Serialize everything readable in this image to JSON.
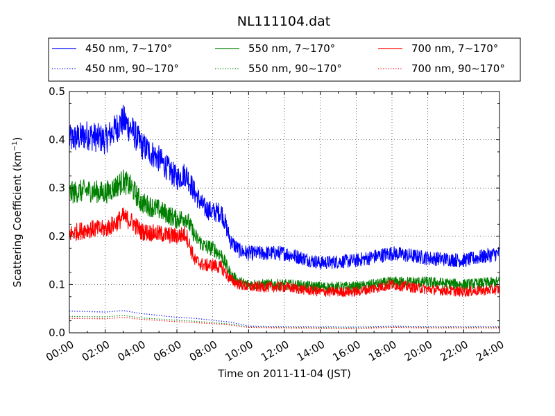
{
  "chart_data": {
    "type": "line",
    "title": "NL111104.dat",
    "xlabel": "Time on 2011-11-04 (JST)",
    "ylabel": "Scattering Coefficient (km",
    "ylabel_sup": "−1",
    "ylabel_tail": ")",
    "xlim": [
      "00:00",
      "24:00"
    ],
    "ylim": [
      0,
      0.5
    ],
    "x_ticks": [
      "00:00",
      "02:00",
      "04:00",
      "06:00",
      "08:00",
      "10:00",
      "12:00",
      "14:00",
      "16:00",
      "18:00",
      "20:00",
      "22:00",
      "24:00"
    ],
    "y_ticks": [
      "0.0",
      "0.1",
      "0.2",
      "0.3",
      "0.4",
      "0.5"
    ],
    "grid": true,
    "legend_position": "top",
    "series": [
      {
        "name": "450 nm, 7∼170°",
        "color": "#0000ff",
        "style": "solid",
        "x": [
          "00:00",
          "01:00",
          "02:00",
          "02:30",
          "03:00",
          "03:30",
          "04:00",
          "05:00",
          "06:00",
          "06:30",
          "07:00",
          "07:30",
          "08:00",
          "08:30",
          "09:00",
          "09:30",
          "10:00",
          "12:00",
          "14:00",
          "16:00",
          "18:00",
          "20:00",
          "22:00",
          "24:00"
        ],
        "y": [
          0.4,
          0.41,
          0.4,
          0.42,
          0.44,
          0.42,
          0.39,
          0.36,
          0.32,
          0.33,
          0.29,
          0.26,
          0.25,
          0.25,
          0.19,
          0.17,
          0.165,
          0.165,
          0.145,
          0.15,
          0.165,
          0.155,
          0.15,
          0.165
        ]
      },
      {
        "name": "550 nm, 7∼170°",
        "color": "#008000",
        "style": "solid",
        "x": [
          "00:00",
          "01:00",
          "02:00",
          "02:30",
          "03:00",
          "03:30",
          "04:00",
          "05:00",
          "06:00",
          "06:30",
          "07:00",
          "07:30",
          "08:00",
          "08:30",
          "09:00",
          "09:30",
          "10:00",
          "12:00",
          "14:00",
          "16:00",
          "18:00",
          "20:00",
          "22:00",
          "24:00"
        ],
        "y": [
          0.29,
          0.295,
          0.29,
          0.3,
          0.315,
          0.3,
          0.27,
          0.255,
          0.235,
          0.24,
          0.2,
          0.18,
          0.175,
          0.16,
          0.12,
          0.105,
          0.1,
          0.1,
          0.095,
          0.095,
          0.105,
          0.105,
          0.1,
          0.105
        ]
      },
      {
        "name": "700 nm, 7∼170°",
        "color": "#ff0000",
        "style": "solid",
        "x": [
          "00:00",
          "01:00",
          "02:00",
          "02:30",
          "03:00",
          "03:30",
          "04:00",
          "05:00",
          "06:00",
          "06:30",
          "07:00",
          "07:30",
          "08:00",
          "08:30",
          "09:00",
          "09:30",
          "10:00",
          "12:00",
          "14:00",
          "16:00",
          "18:00",
          "20:00",
          "22:00",
          "24:00"
        ],
        "y": [
          0.205,
          0.215,
          0.215,
          0.225,
          0.24,
          0.23,
          0.21,
          0.205,
          0.2,
          0.205,
          0.15,
          0.14,
          0.14,
          0.135,
          0.11,
          0.1,
          0.095,
          0.095,
          0.085,
          0.085,
          0.1,
          0.09,
          0.085,
          0.09
        ]
      },
      {
        "name": "450 nm, 90∼170°",
        "color": "#0000ff",
        "style": "dotted",
        "x": [
          "00:00",
          "02:00",
          "03:00",
          "04:00",
          "06:00",
          "07:00",
          "08:00",
          "09:00",
          "10:00",
          "12:00",
          "16:00",
          "18:00",
          "20:00",
          "24:00"
        ],
        "y": [
          0.045,
          0.043,
          0.046,
          0.04,
          0.032,
          0.03,
          0.026,
          0.022,
          0.014,
          0.013,
          0.012,
          0.014,
          0.013,
          0.013
        ]
      },
      {
        "name": "550 nm, 90∼170°",
        "color": "#008000",
        "style": "dotted",
        "x": [
          "00:00",
          "02:00",
          "03:00",
          "04:00",
          "06:00",
          "07:00",
          "08:00",
          "09:00",
          "10:00",
          "12:00",
          "16:00",
          "18:00",
          "20:00",
          "24:00"
        ],
        "y": [
          0.034,
          0.033,
          0.036,
          0.031,
          0.026,
          0.024,
          0.021,
          0.018,
          0.012,
          0.011,
          0.01,
          0.012,
          0.011,
          0.011
        ]
      },
      {
        "name": "700 nm, 90∼170°",
        "color": "#ff0000",
        "style": "dotted",
        "x": [
          "00:00",
          "02:00",
          "03:00",
          "04:00",
          "06:00",
          "07:00",
          "08:00",
          "09:00",
          "10:00",
          "12:00",
          "16:00",
          "18:00",
          "20:00",
          "24:00"
        ],
        "y": [
          0.03,
          0.029,
          0.032,
          0.028,
          0.023,
          0.021,
          0.019,
          0.016,
          0.011,
          0.01,
          0.009,
          0.011,
          0.01,
          0.01
        ]
      }
    ]
  }
}
